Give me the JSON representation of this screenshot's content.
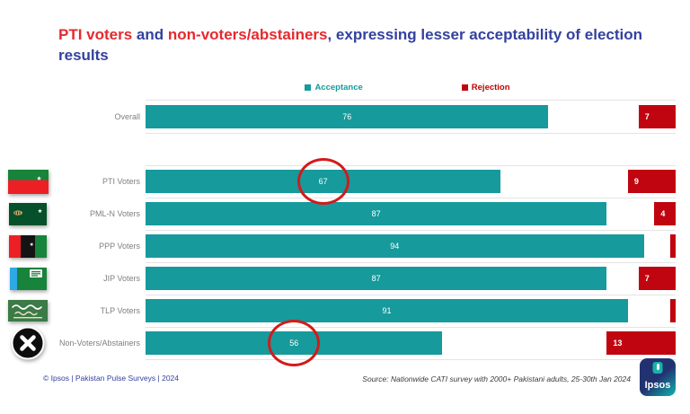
{
  "title": {
    "seg1": "PTI voters",
    "seg2": " and ",
    "seg3": "non-voters/abstainers",
    "seg4": ", expressing lesser acceptability of election results"
  },
  "legend": {
    "acceptance": "Acceptance",
    "rejection": "Rejection"
  },
  "colors": {
    "acceptance": "#169A9C",
    "rejection": "#C00511",
    "title_blue": "#33419E",
    "title_red": "#E6292E",
    "circle_highlight": "#D41A1A"
  },
  "chart_data": {
    "type": "bar",
    "orientation": "horizontal",
    "xlim": [
      0,
      100
    ],
    "value_unit": "percent",
    "legend_position": "top",
    "series_names": [
      "Acceptance",
      "Rejection"
    ],
    "rows": [
      {
        "label": "Overall",
        "acceptance": 76,
        "rejection": 7,
        "flag": "",
        "circled": false,
        "rejection_unlabeled": false
      },
      {
        "label": "",
        "acceptance": null,
        "rejection": null,
        "flag": "",
        "circled": false,
        "rejection_unlabeled": false
      },
      {
        "label": "PTI Voters",
        "acceptance": 67,
        "rejection": 9,
        "flag": "pti-flag",
        "circled": true,
        "rejection_unlabeled": false
      },
      {
        "label": "PML-N Voters",
        "acceptance": 87,
        "rejection": 4,
        "flag": "pmln-flag",
        "circled": false,
        "rejection_unlabeled": false
      },
      {
        "label": "PPP Voters",
        "acceptance": 94,
        "rejection": 1,
        "flag": "ppp-flag",
        "circled": false,
        "rejection_unlabeled": true
      },
      {
        "label": "JIP Voters",
        "acceptance": 87,
        "rejection": 7,
        "flag": "jip-flag",
        "circled": false,
        "rejection_unlabeled": false
      },
      {
        "label": "TLP Voters",
        "acceptance": 91,
        "rejection": 1,
        "flag": "tlp-flag",
        "circled": false,
        "rejection_unlabeled": true
      },
      {
        "label": "Non-Voters/Abstainers",
        "acceptance": 56,
        "rejection": 13,
        "flag": "novote-icon",
        "circled": true,
        "rejection_unlabeled": false
      }
    ]
  },
  "footer": {
    "copyright": "© Ipsos | Pakistan Pulse Surveys | 2024",
    "source": "Source: Nationwide CATI survey with 2000+ Pakistani adults, 25-30th Jan 2024",
    "logo_text": "Ipsos"
  }
}
